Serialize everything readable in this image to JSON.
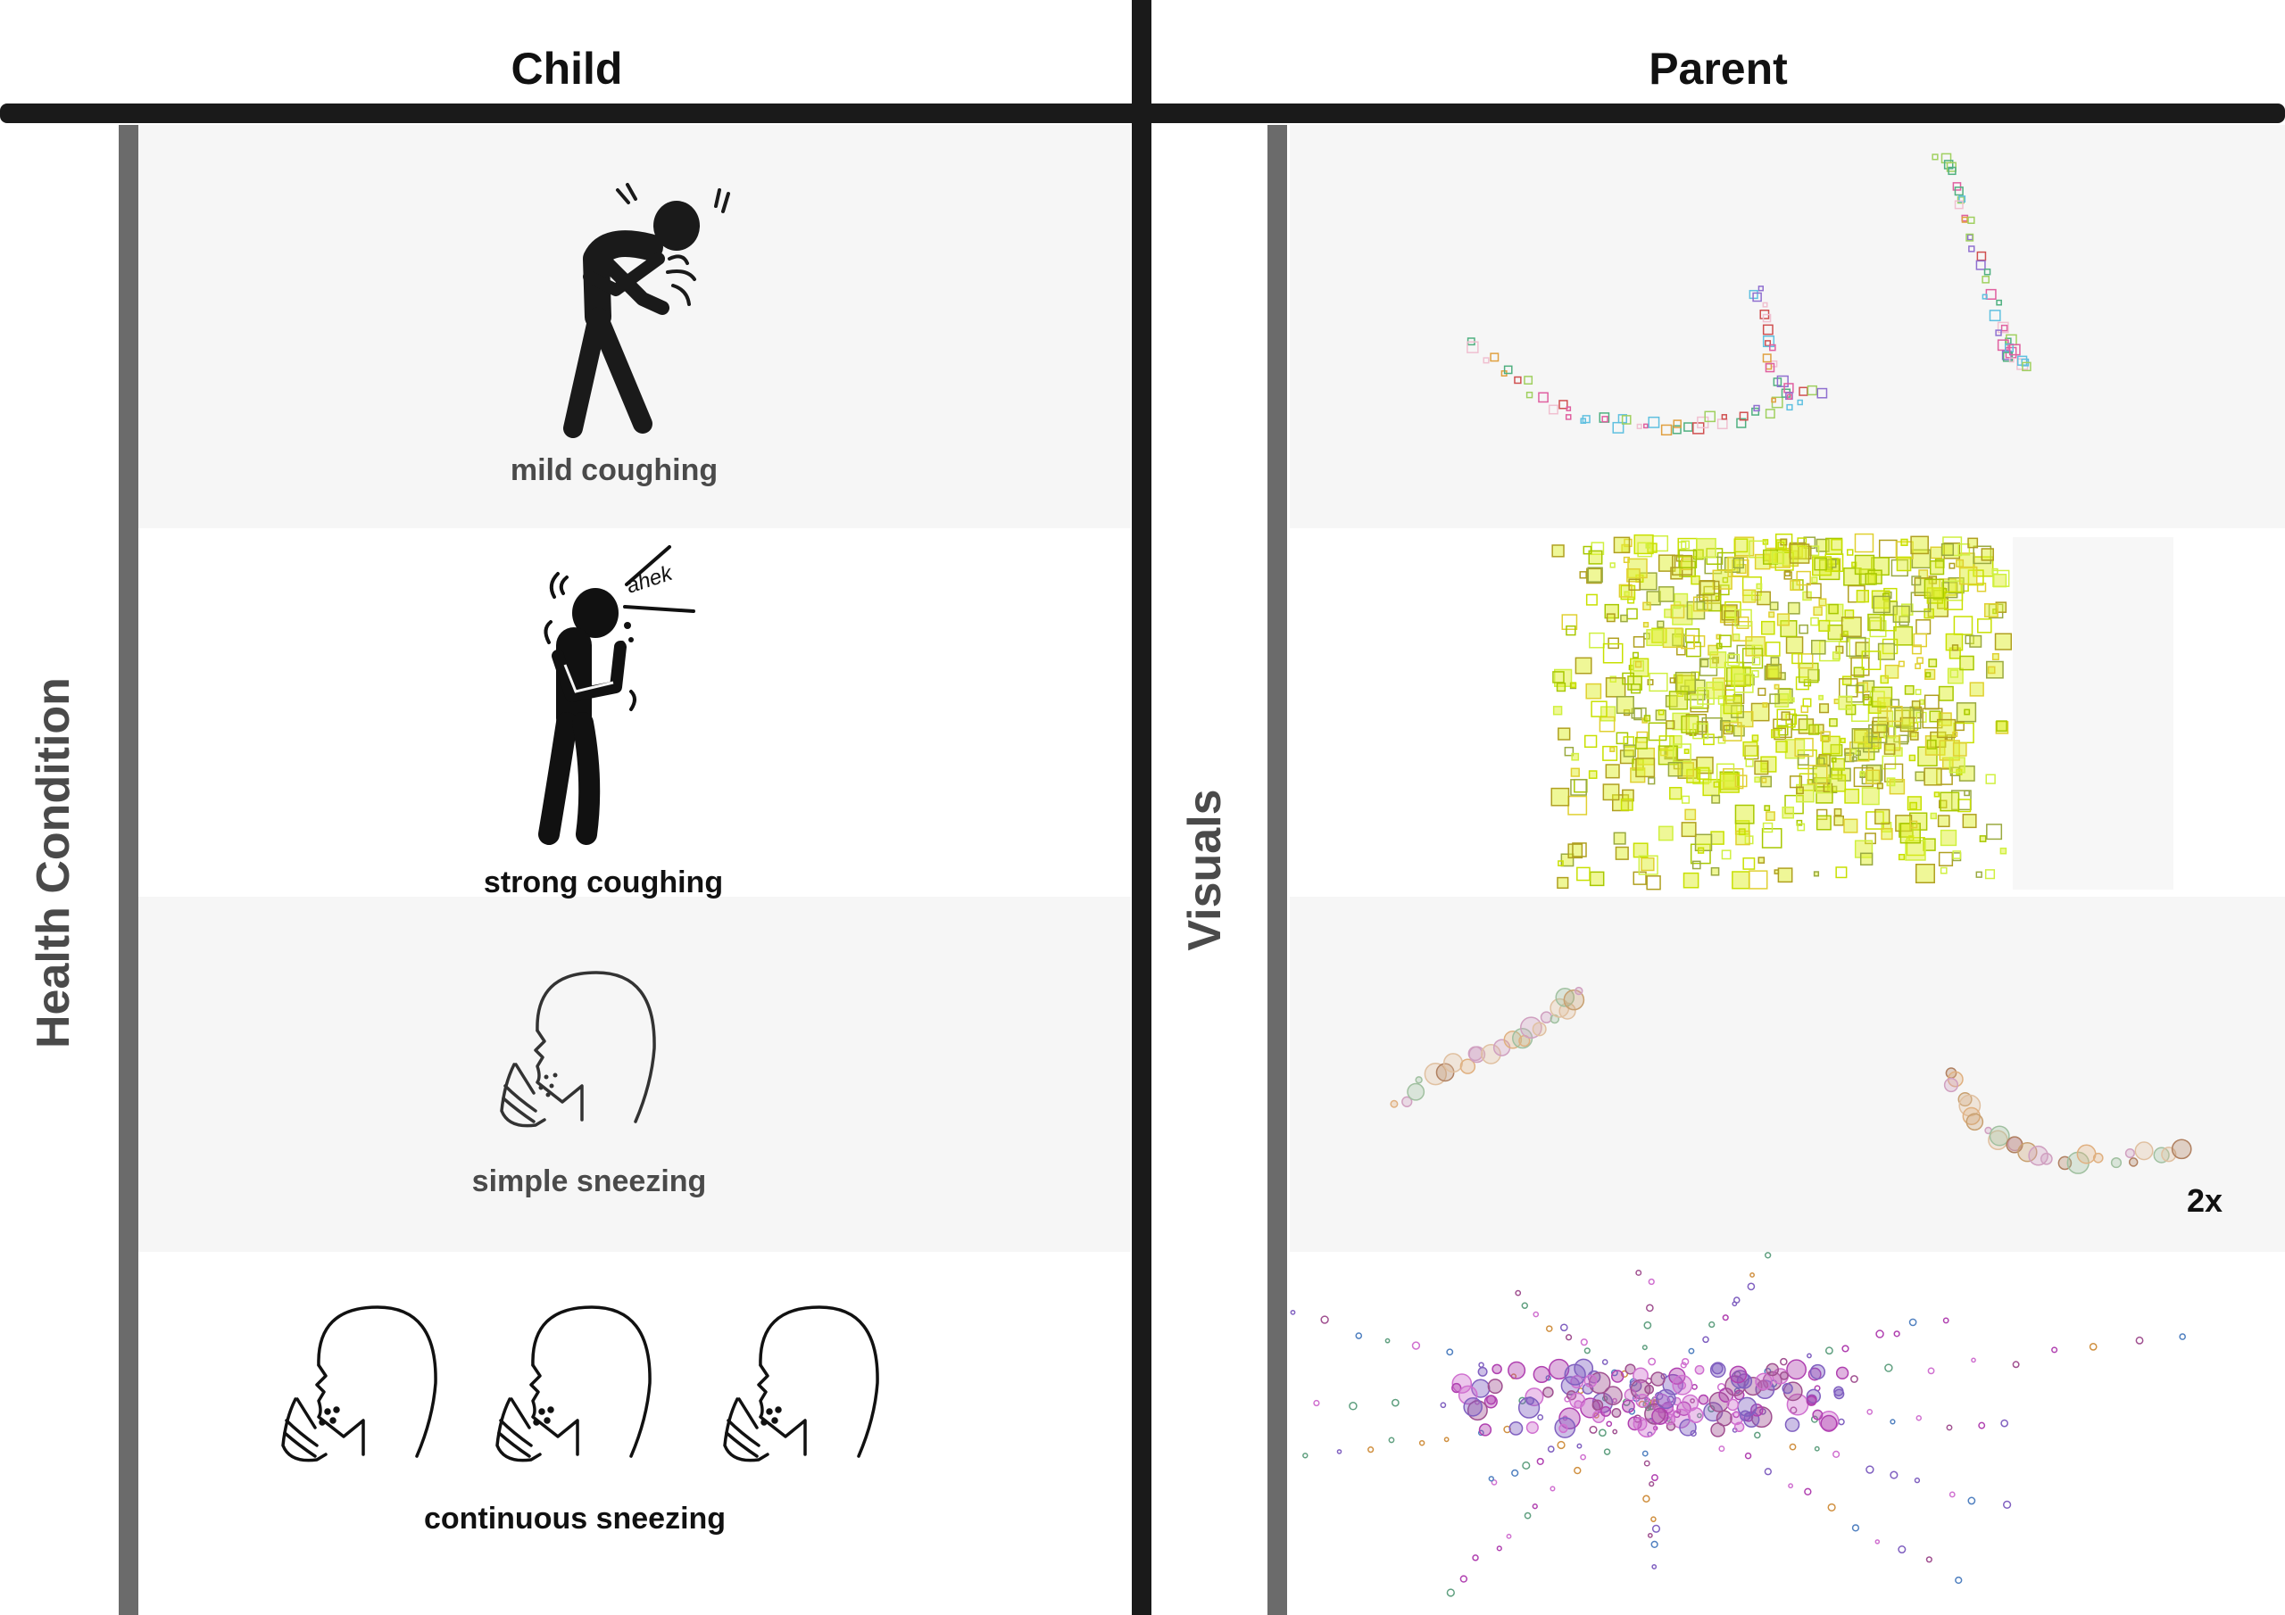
{
  "headers": {
    "child": "Child",
    "parent": "Parent"
  },
  "side_labels": {
    "left": "Health Condition",
    "middle": "Visuals"
  },
  "rows": [
    {
      "caption": "mild coughing",
      "icon": "mild-coughing-figure-icon"
    },
    {
      "caption": "strong coughing",
      "icon": "strong-coughing-figure-icon",
      "sound": "ahek"
    },
    {
      "caption": "simple sneezing",
      "icon": "sneezing-head-icon"
    },
    {
      "caption": "continuous sneezing",
      "icon": "three-sneezing-heads-icon"
    }
  ],
  "visual_notes": {
    "speed": "2x"
  },
  "colors": {
    "band": "#f6f6f6",
    "divider": "#1a1a1a",
    "side_bar": "#6b6b6b",
    "strong_cough_fill": "#d8f000",
    "sneeze_particles": "#c8a070",
    "continuous_particles": "#b040b0"
  }
}
